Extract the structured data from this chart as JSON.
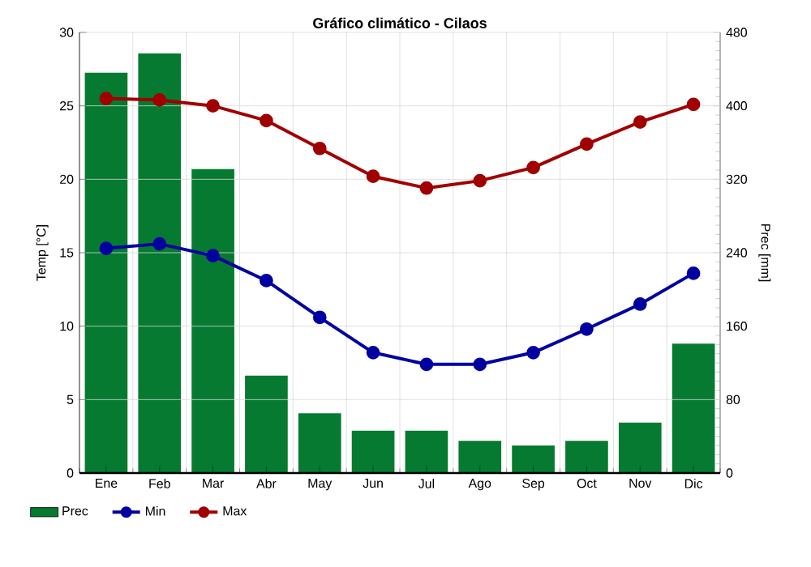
{
  "chart_data": {
    "type": "bar",
    "title": "Gráfico climático - Cilaos",
    "ylabel": "Temp [°C]",
    "y2label": "Prec [mm]",
    "categories": [
      "Ene",
      "Feb",
      "Mar",
      "Abr",
      "May",
      "Jun",
      "Jul",
      "Ago",
      "Sep",
      "Oct",
      "Nov",
      "Dic"
    ],
    "series": [
      {
        "name": "Prec",
        "axis": "y2",
        "color": "#057a30",
        "values": [
          436,
          457,
          331,
          106,
          65,
          46,
          46,
          35,
          30,
          35,
          55,
          141
        ]
      },
      {
        "name": "Min",
        "type": "line",
        "color": "#0000a0",
        "values": [
          15.3,
          15.6,
          14.8,
          13.1,
          10.6,
          8.2,
          7.4,
          7.4,
          8.2,
          9.8,
          11.5,
          13.6
        ]
      },
      {
        "name": "Max",
        "type": "line",
        "color": "#a00000",
        "values": [
          25.5,
          25.4,
          25.0,
          24.0,
          22.1,
          20.2,
          19.4,
          19.9,
          20.8,
          22.4,
          23.9,
          25.1
        ]
      }
    ],
    "ylim": [
      0,
      30
    ],
    "yticks": [
      0,
      5,
      10,
      15,
      20,
      25,
      30
    ],
    "y2lim": [
      0,
      480
    ],
    "y2ticks": [
      0,
      80,
      160,
      240,
      320,
      400,
      480
    ],
    "grid": true,
    "legend": "bottom left",
    "marker": "circle"
  }
}
